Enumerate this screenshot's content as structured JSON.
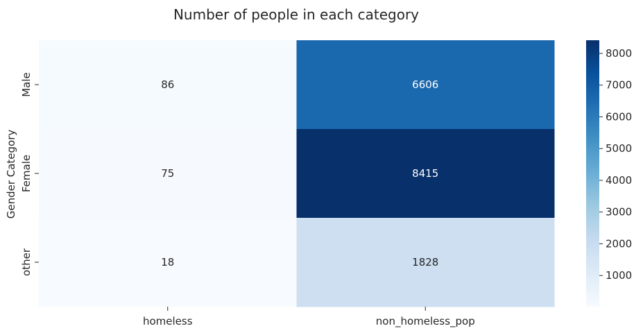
{
  "chart_data": {
    "type": "heatmap",
    "title": "Number of people in each category",
    "xlabel": "",
    "ylabel": "Gender Category",
    "x_categories": [
      "homeless",
      "non_homeless_pop"
    ],
    "y_categories": [
      "Male",
      "Female",
      "other"
    ],
    "values": [
      [
        86,
        6606
      ],
      [
        75,
        8415
      ],
      [
        18,
        1828
      ]
    ],
    "annotations": [
      [
        "86",
        "6606"
      ],
      [
        "75",
        "8415"
      ],
      [
        "18",
        "1828"
      ]
    ],
    "colormap": "Blues",
    "color_range": [
      18,
      8415
    ],
    "colorbar_ticks": [
      1000,
      2000,
      3000,
      4000,
      5000,
      6000,
      7000,
      8000
    ],
    "colorbar_tick_labels": [
      "1000",
      "2000",
      "3000",
      "4000",
      "5000",
      "6000",
      "7000",
      "8000"
    ],
    "grid": false
  }
}
